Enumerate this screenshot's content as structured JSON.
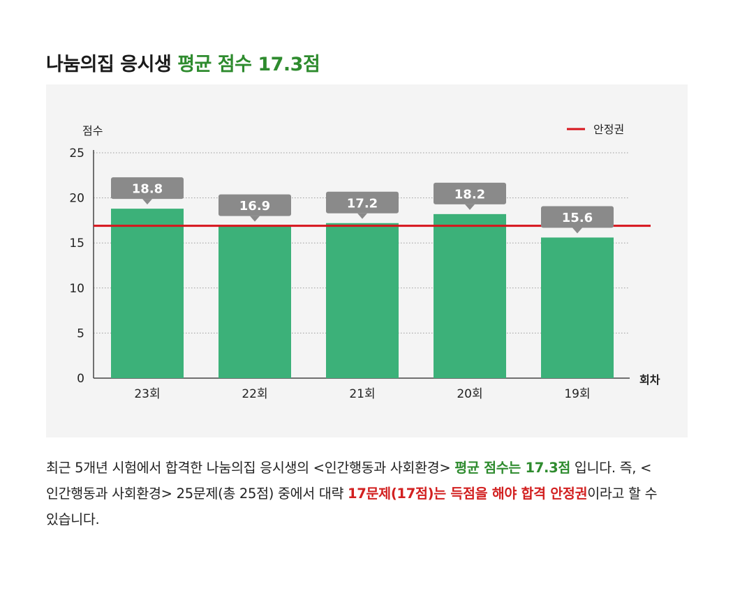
{
  "title": {
    "main": "나눔의집 응시생",
    "highlight": "평균 점수 17.3점"
  },
  "colors": {
    "bar": "#3cb179",
    "line": "#d7141c",
    "callout": "#8a8a8a",
    "title_highlight": "#2e8b2e",
    "text_highlight_red": "#d22020",
    "panel_bg": "#f4f4f4"
  },
  "chart_data": {
    "type": "bar",
    "ylabel": "점수",
    "xlabel": "회차",
    "categories": [
      "23회",
      "22회",
      "21회",
      "20회",
      "19회"
    ],
    "values": [
      18.8,
      16.9,
      17.2,
      18.2,
      15.6
    ],
    "data_labels": [
      "18.8",
      "16.9",
      "17.2",
      "18.2",
      "15.6"
    ],
    "ylim": [
      0,
      25
    ],
    "yticks": [
      0,
      5,
      10,
      15,
      20,
      25
    ],
    "grid": true,
    "reference_line": {
      "name": "안정권",
      "value": 16.9
    },
    "legend": {
      "position": "top-right",
      "label": "안정권"
    }
  },
  "description": {
    "p1": "최근 5개년 시험에서 합격한 나눔의집 응시생의 <인간행동과 사회환경> ",
    "p1_hl": "평균 점수는 17.3점",
    "p2": " 입니다. 즉, <인간행동과 사회환경> 25문제(총 25점) 중에서 대략 ",
    "p2_hl": "17문제(17점)는 득점을 해야 합격 안정권",
    "p3": "이라고 할 수 있습니다."
  }
}
